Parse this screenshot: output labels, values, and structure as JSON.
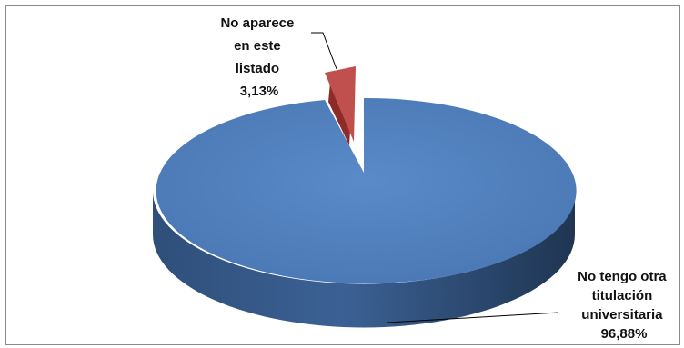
{
  "chart_data": {
    "type": "pie",
    "style": "3d-exploded",
    "slices": [
      {
        "label_lines": [
          "No tengo otra",
          "titulación",
          "universitaria",
          "96,88%"
        ],
        "value": 96.88,
        "color": "#4f81bd"
      },
      {
        "label_lines": [
          "No aparece",
          "en este",
          "listado",
          "3,13%"
        ],
        "value": 3.13,
        "color": "#c0504d"
      }
    ],
    "legend": "none",
    "data_label_position": "outside-with-leader-lines"
  }
}
